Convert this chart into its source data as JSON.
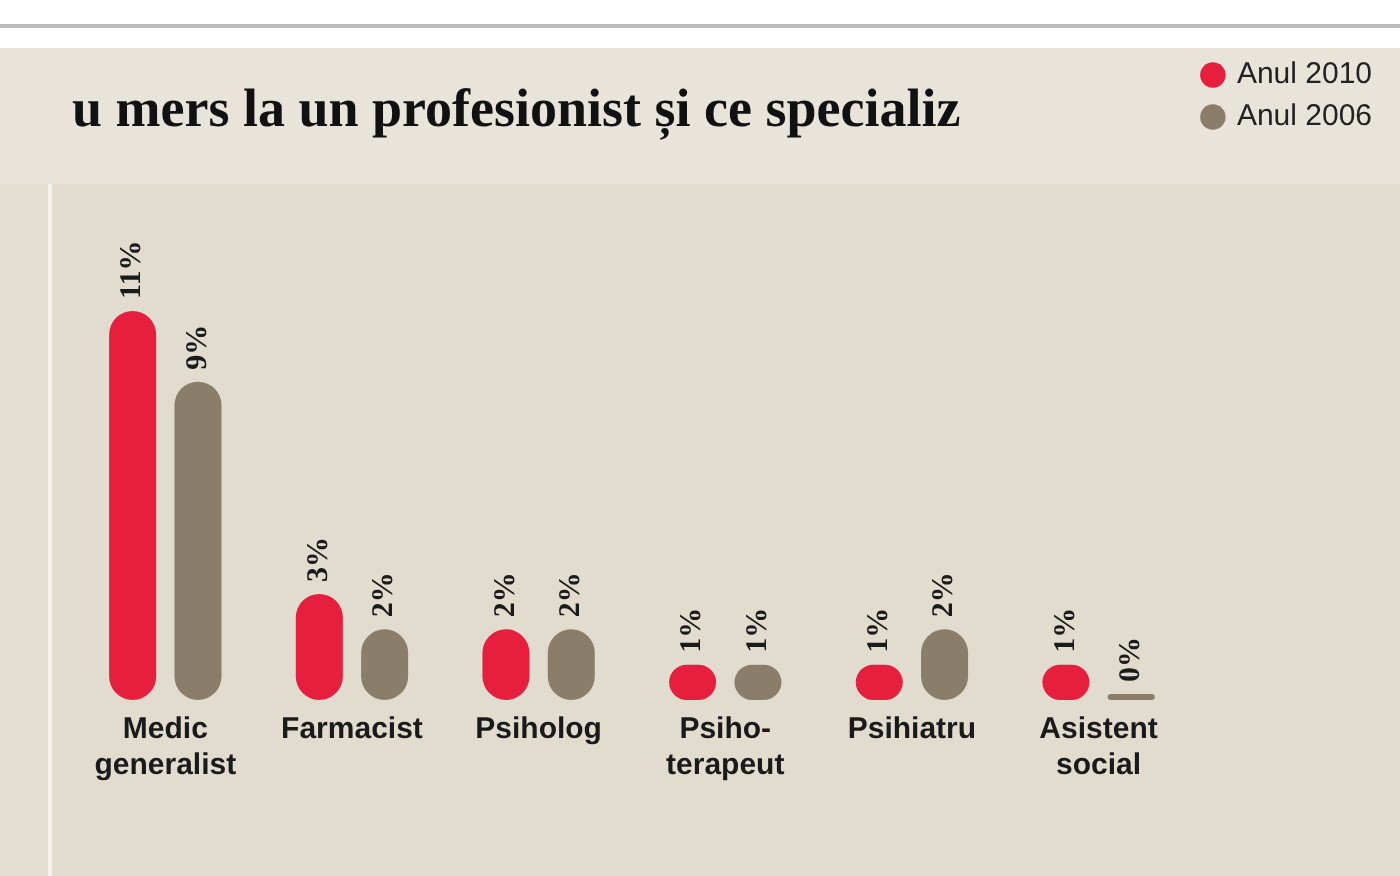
{
  "chart_data": {
    "type": "bar",
    "title": "u mers la un profesionist și ce specializ",
    "categories": [
      "Medic generalist",
      "Farmacist",
      "Psiholog",
      "Psiho-terapeut",
      "Psihiatru",
      "Asistent social"
    ],
    "series": [
      {
        "name": "Anul 2010",
        "color": "#e51f3d",
        "values": [
          11,
          3,
          2,
          1,
          1,
          1
        ],
        "value_labels": [
          "11%",
          "3%",
          "2%",
          "1%",
          "1%",
          "1%"
        ]
      },
      {
        "name": "Anul 2006",
        "color": "#8a7e6b",
        "values": [
          9,
          2,
          2,
          1,
          2,
          0
        ],
        "value_labels": [
          "9%",
          "2%",
          "2%",
          "1%",
          "2%",
          "0%"
        ]
      }
    ],
    "legend": "top right",
    "grid": false
  }
}
